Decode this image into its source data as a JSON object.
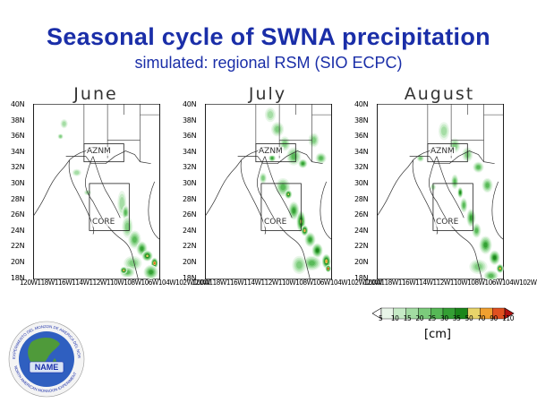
{
  "title": "Seasonal cycle of SWNA precipitation",
  "subtitle": "simulated: regional RSM (SIO ECPC)",
  "panels": [
    {
      "month": "June"
    },
    {
      "month": "July"
    },
    {
      "month": "August"
    }
  ],
  "y_ticks": [
    "40N",
    "38N",
    "36N",
    "34N",
    "32N",
    "30N",
    "28N",
    "26N",
    "24N",
    "22N",
    "20N",
    "18N"
  ],
  "x_ticks": [
    "120W",
    "118W",
    "116W",
    "114W",
    "112W",
    "110W",
    "108W",
    "106W",
    "104W",
    "102W",
    "100W"
  ],
  "box_labels": {
    "aznm": "AZNM",
    "core": "CORE"
  },
  "legend": {
    "ticks": [
      "5",
      "10",
      "15",
      "20",
      "25",
      "30",
      "35",
      "50",
      "70",
      "90",
      "110"
    ],
    "colors": [
      "#ffffff",
      "#e8f5e8",
      "#c6ebc6",
      "#a3dca3",
      "#7ccb7c",
      "#56b856",
      "#349f34",
      "#1a861a",
      "#e8d46a",
      "#f0a030",
      "#e05020",
      "#b01010"
    ],
    "units": "[cm]"
  },
  "logo_text": {
    "ring_top": "EXPERIMENTO DEL MONZON DE AMERICA DEL NORTE",
    "name": "NAME",
    "ring_bottom": "NORTH AMERICAN MONSOON EXPERIMENT"
  }
}
